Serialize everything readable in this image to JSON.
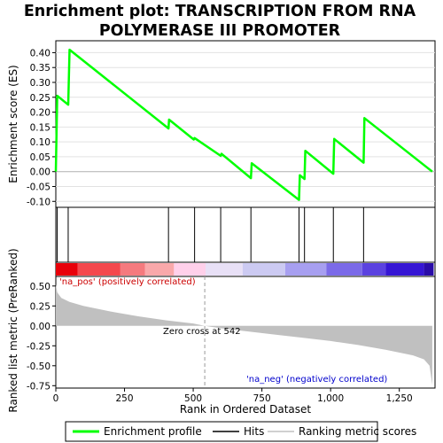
{
  "title_line1": "Enrichment plot: TRANSCRIPTION FROM RNA",
  "title_line2": "POLYMERASE III PROMOTER",
  "chart_data": {
    "type": "line",
    "panels": {
      "enrichment": {
        "ylabel": "Enrichment score (ES)",
        "ylim": [
          -0.12,
          0.44
        ],
        "yticks": [
          "0.40",
          "0.35",
          "0.30",
          "0.25",
          "0.20",
          "0.15",
          "0.10",
          "0.05",
          "0.00",
          "-0.05",
          "-0.10"
        ],
        "ytick_values": [
          0.4,
          0.35,
          0.3,
          0.25,
          0.2,
          0.15,
          0.1,
          0.05,
          0.0,
          -0.05,
          -0.1
        ],
        "series": [
          {
            "name": "Enrichment profile",
            "color": "#00ff00",
            "x": [
              0,
              5,
              45,
              50,
              410,
              412,
              502,
              505,
              600,
              603,
              710,
              713,
              885,
              888,
              905,
              908,
              1010,
              1013,
              1120,
              1123,
              1370
            ],
            "y": [
              0.0,
              0.255,
              0.225,
              0.41,
              0.145,
              0.175,
              0.108,
              0.113,
              0.053,
              0.06,
              -0.022,
              0.028,
              -0.095,
              -0.012,
              -0.025,
              0.07,
              -0.007,
              0.11,
              0.03,
              0.18,
              0.0
            ]
          }
        ]
      },
      "hits": {
        "positions": [
          5,
          45,
          410,
          505,
          600,
          710,
          885,
          905,
          1010,
          1120
        ]
      },
      "ranked_metric": {
        "ylabel": "Ranked list metric (PreRanked)",
        "ylim": [
          -0.78,
          0.62
        ],
        "yticks": [
          "0.50",
          "0.25",
          "0.00",
          "-0.25",
          "-0.50",
          "-0.75"
        ],
        "ytick_values": [
          0.5,
          0.25,
          0.0,
          -0.25,
          -0.5,
          -0.75
        ],
        "series": [
          {
            "name": "Ranking metric scores",
            "color": "#c0c0c0",
            "x": [
              0,
              5,
              20,
              50,
              100,
              200,
              300,
              400,
              500,
              542,
              600,
              700,
              800,
              900,
              1000,
              1100,
              1200,
              1300,
              1340,
              1360,
              1370
            ],
            "y": [
              0.52,
              0.42,
              0.35,
              0.3,
              0.25,
              0.18,
              0.12,
              0.07,
              0.03,
              0.0,
              -0.03,
              -0.07,
              -0.11,
              -0.15,
              -0.19,
              -0.24,
              -0.3,
              -0.37,
              -0.42,
              -0.5,
              -0.74
            ]
          }
        ],
        "zero_cross": 542
      }
    },
    "xlabel": "Rank in Ordered Dataset",
    "xlim": [
      0,
      1380
    ],
    "xticks": [
      "0",
      "250",
      "500",
      "750",
      "1,000",
      "1,250"
    ],
    "xtick_values": [
      0,
      250,
      500,
      750,
      1000,
      1250
    ],
    "heatbar": {
      "colors": [
        "#e8000a",
        "#f4484d",
        "#f57a7e",
        "#f9a8aa",
        "#ffd0ea",
        "#e8e0f6",
        "#cccaf2",
        "#a79ff0",
        "#7b6ae8",
        "#5b42e0",
        "#3616d4",
        "#2a0ca8"
      ],
      "boundaries": [
        0,
        80,
        235,
        325,
        430,
        545,
        680,
        835,
        985,
        1115,
        1200,
        1340,
        1375
      ]
    },
    "annotations": {
      "pos_label": "'na_pos' (positively correlated)",
      "neg_label": "'na_neg' (negatively correlated)",
      "zero_label": "Zero cross at 542"
    },
    "legend": [
      {
        "label": "Enrichment profile",
        "color": "#00ff00"
      },
      {
        "label": "Hits",
        "color": "#000000"
      },
      {
        "label": "Ranking metric scores",
        "color": "#c0c0c0"
      }
    ]
  }
}
